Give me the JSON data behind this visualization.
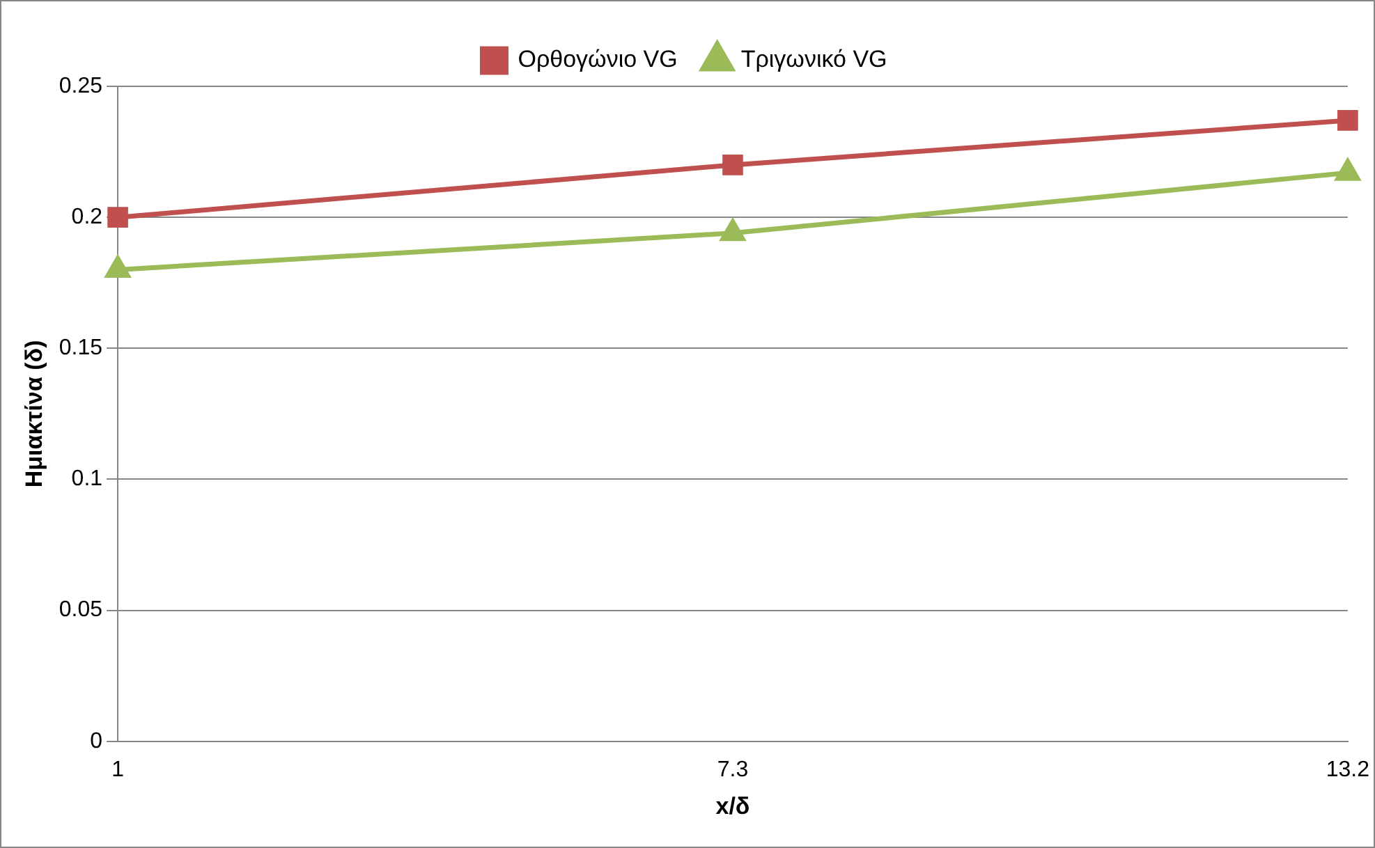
{
  "chart_data": {
    "type": "line",
    "xlabel": "x/δ",
    "ylabel": "Ημιακτίνα (δ)",
    "categories": [
      "1",
      "7.3",
      "13.2"
    ],
    "series": [
      {
        "name": "Ορθογώνιο VG",
        "color": "#c0504d",
        "marker": "square",
        "values": [
          0.2,
          0.22,
          0.237
        ]
      },
      {
        "name": "Τριγωνικό VG",
        "color": "#9bbb59",
        "marker": "triangle",
        "values": [
          0.18,
          0.194,
          0.217
        ]
      }
    ],
    "ylim": [
      0,
      0.25
    ],
    "yticks": [
      0,
      0.05,
      0.1,
      0.15,
      0.2,
      0.25
    ],
    "grid": "y",
    "legend": "top",
    "line_style": "solid"
  }
}
